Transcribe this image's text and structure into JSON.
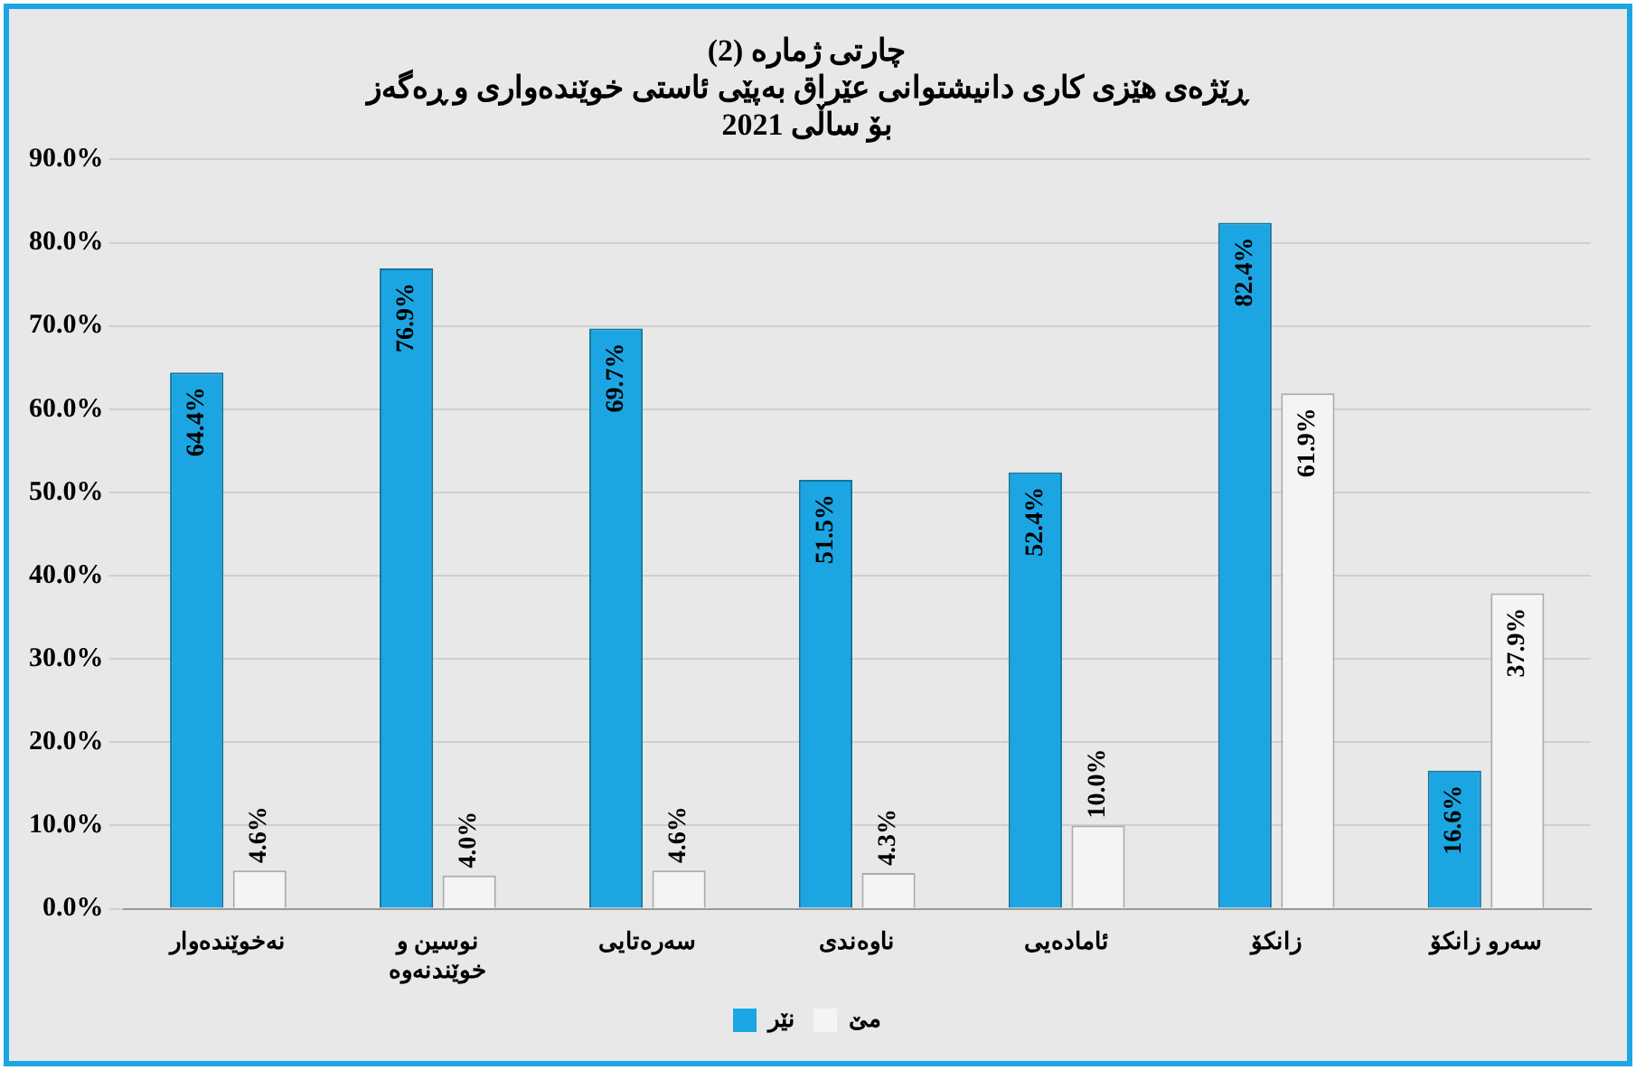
{
  "chart_data": {
    "type": "bar",
    "title": [
      "چارتی ژمارە (2)",
      "ڕێژەی هێزی کاری دانیشتوانی عێراق بەپێی ئاستی خوێندەواری و ڕەگەز",
      "بۆ ساڵی 2021"
    ],
    "categories": [
      "نەخوێندەوار",
      "نوسین و خوێندنەوە",
      "سەرەتایی",
      "ناوەندی",
      "ئامادەیی",
      "زانکۆ",
      "سەرو زانکۆ"
    ],
    "series": [
      {
        "name": "نێر",
        "color": "#1ba6e3",
        "values": [
          64.4,
          76.9,
          69.7,
          51.5,
          52.4,
          82.4,
          16.6
        ],
        "value_labels": [
          "64.4%",
          "76.9%",
          "69.7%",
          "51.5%",
          "52.4%",
          "82.4%",
          "16.6%"
        ]
      },
      {
        "name": "مێ",
        "color": "#f4f4f4",
        "values": [
          4.6,
          4.0,
          4.6,
          4.3,
          10.0,
          61.9,
          37.9
        ],
        "value_labels": [
          "4.6%",
          "4.0%",
          "4.6%",
          "4.3%",
          "10.0%",
          "61.9%",
          "37.9%"
        ]
      }
    ],
    "ylim": [
      0,
      90
    ],
    "yticks": [
      {
        "value": 0,
        "label": "0.0%"
      },
      {
        "value": 10,
        "label": "10.0%"
      },
      {
        "value": 20,
        "label": "20.0%"
      },
      {
        "value": 30,
        "label": "30.0%"
      },
      {
        "value": 40,
        "label": "40.0%"
      },
      {
        "value": 50,
        "label": "50.0%"
      },
      {
        "value": 60,
        "label": "60.0%"
      },
      {
        "value": 70,
        "label": "70.0%"
      },
      {
        "value": 80,
        "label": "80.0%"
      },
      {
        "value": 90,
        "label": "90.0%"
      }
    ],
    "grid": "y",
    "legend": "bottom"
  }
}
